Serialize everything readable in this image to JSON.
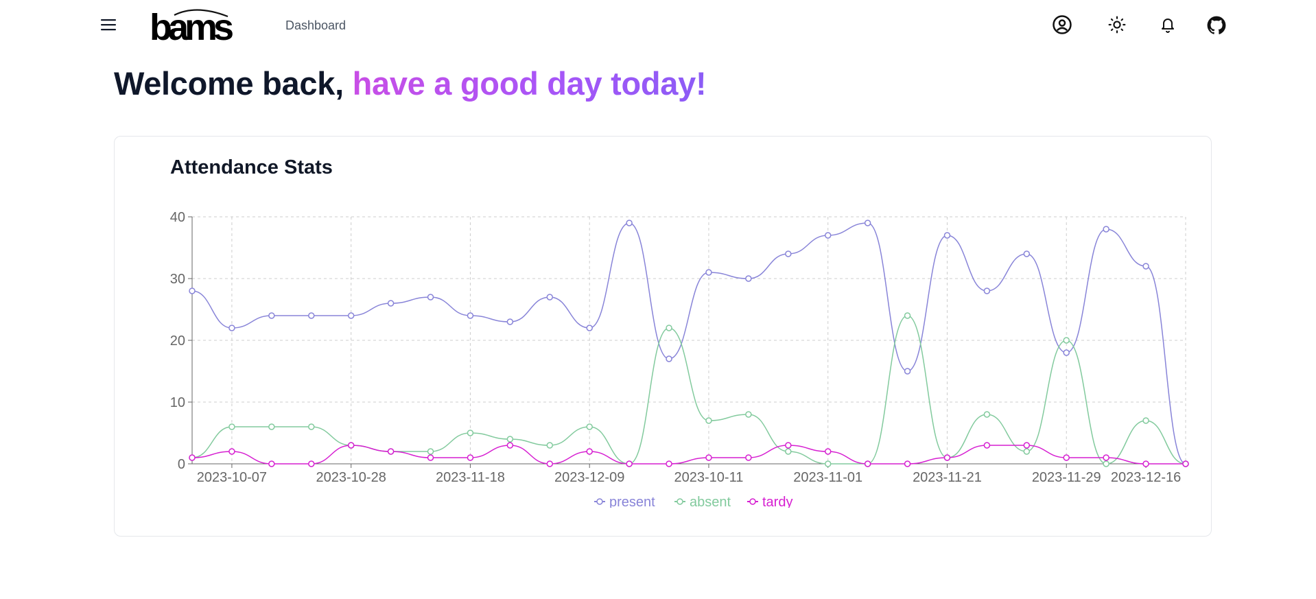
{
  "nav": {
    "menu_icon": "hamburger-menu-icon",
    "logo_text": "bams",
    "dashboard_link": "Dashboard",
    "icons": [
      "user-circle-icon",
      "sun-icon",
      "bell-icon",
      "github-icon"
    ]
  },
  "welcome": {
    "prefix": "Welcome back, ",
    "highlight": "have a good day today!"
  },
  "card": {
    "title": "Attendance Stats"
  },
  "colors": {
    "present": "#8884d8",
    "absent": "#82ca9d",
    "tardy": "#d61fd1",
    "grid": "#cccccc",
    "axis": "#666666"
  },
  "chart_data": {
    "type": "line",
    "title": "Attendance Stats",
    "xlabel": "",
    "ylabel": "",
    "ylim": [
      0,
      40
    ],
    "y_ticks": [
      0,
      10,
      20,
      30,
      40
    ],
    "x_tick_labels": [
      "2023-10-07",
      "2023-10-28",
      "2023-11-18",
      "2023-12-09",
      "2023-10-11",
      "2023-11-01",
      "2023-11-21",
      "2023-11-29",
      "2023-12-16"
    ],
    "x_tick_indices": [
      1,
      4,
      7,
      10,
      13,
      16,
      19,
      22,
      24
    ],
    "grid": true,
    "legend_position": "bottom-center",
    "point_count": 26,
    "series": [
      {
        "name": "present",
        "values": [
          28,
          22,
          24,
          24,
          24,
          26,
          27,
          24,
          23,
          27,
          22,
          39,
          17,
          31,
          30,
          34,
          37,
          39,
          15,
          37,
          28,
          34,
          18,
          38,
          32,
          0
        ]
      },
      {
        "name": "absent",
        "values": [
          1,
          6,
          6,
          6,
          3,
          2,
          2,
          5,
          4,
          3,
          6,
          0,
          22,
          7,
          8,
          2,
          0,
          0,
          24,
          1,
          8,
          2,
          20,
          0,
          7,
          0
        ]
      },
      {
        "name": "tardy",
        "values": [
          1,
          2,
          0,
          0,
          3,
          2,
          1,
          1,
          3,
          0,
          2,
          0,
          0,
          1,
          1,
          3,
          2,
          0,
          0,
          1,
          3,
          3,
          1,
          1,
          0,
          0
        ]
      }
    ]
  }
}
